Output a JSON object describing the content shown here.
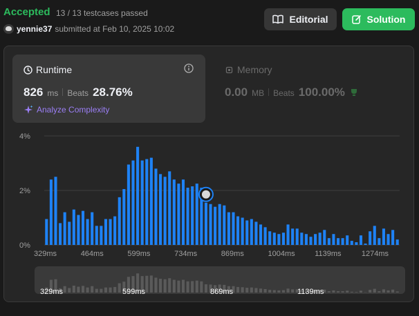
{
  "header": {
    "status": "Accepted",
    "testcases": "13 / 13 testcases passed",
    "username": "yennie37",
    "submitted_text": "submitted at Feb 10, 2025 10:02",
    "editorial_label": "Editorial",
    "solution_label": "Solution"
  },
  "runtime": {
    "label": "Runtime",
    "value": "826",
    "unit": "ms",
    "beats_label": "Beats",
    "beats_value": "28.76%",
    "analyze_label": "Analyze Complexity"
  },
  "memory": {
    "label": "Memory",
    "value": "0.00",
    "unit": "MB",
    "beats_label": "Beats",
    "beats_value": "100.00%"
  },
  "colors": {
    "accepted": "#2cbb5d",
    "bar": "#1e82f5",
    "analyze": "#9b7ff5"
  },
  "chart_data": {
    "type": "bar",
    "y_ticks": [
      "4%",
      "2%",
      "0%"
    ],
    "ylim": [
      0,
      4
    ],
    "x_ticks": [
      "329ms",
      "464ms",
      "599ms",
      "734ms",
      "869ms",
      "1004ms",
      "1139ms",
      "1274ms"
    ],
    "mini_x_ticks": [
      "329ms",
      "599ms",
      "869ms",
      "1139ms"
    ],
    "values": [
      0.95,
      2.4,
      2.5,
      0.8,
      1.2,
      0.85,
      1.3,
      1.1,
      1.25,
      0.95,
      1.2,
      0.7,
      0.7,
      0.95,
      0.95,
      1.05,
      1.75,
      2.05,
      2.95,
      3.1,
      3.6,
      3.1,
      3.15,
      3.2,
      2.8,
      2.6,
      2.5,
      2.7,
      2.4,
      2.25,
      2.4,
      2.1,
      2.15,
      2.25,
      2.1,
      1.55,
      1.5,
      1.4,
      1.5,
      1.45,
      1.2,
      1.2,
      1.05,
      1.0,
      0.9,
      0.95,
      0.85,
      0.75,
      0.65,
      0.5,
      0.45,
      0.4,
      0.45,
      0.75,
      0.6,
      0.6,
      0.45,
      0.4,
      0.3,
      0.4,
      0.45,
      0.55,
      0.25,
      0.4,
      0.25,
      0.25,
      0.35,
      0.15,
      0.1,
      0.35,
      0.05,
      0.5,
      0.7,
      0.25,
      0.6,
      0.4,
      0.55,
      0.2
    ],
    "highlight_index": 35
  }
}
